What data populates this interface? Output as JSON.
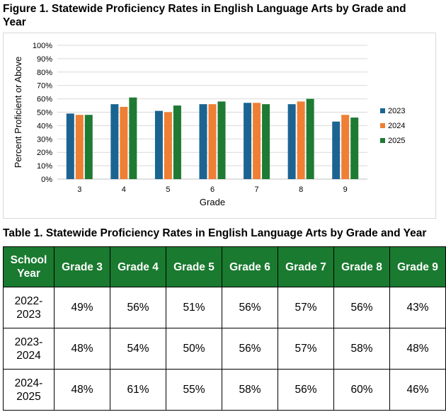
{
  "figure_title": "Figure 1. Statewide Proficiency Rates in English Language Arts by Grade and Year",
  "table_title": "Table 1. Statewide Proficiency Rates in English Language Arts by Grade and Year",
  "chart_data": {
    "type": "bar",
    "categories": [
      "3",
      "4",
      "5",
      "6",
      "7",
      "8",
      "9"
    ],
    "series": [
      {
        "name": "2023",
        "color": "#1b6491",
        "values": [
          49,
          56,
          51,
          56,
          57,
          56,
          43
        ]
      },
      {
        "name": "2024",
        "color": "#ee7f34",
        "values": [
          48,
          54,
          50,
          56,
          57,
          58,
          48
        ]
      },
      {
        "name": "2025",
        "color": "#1f7a33",
        "values": [
          48,
          61,
          55,
          58,
          56,
          60,
          46
        ]
      }
    ],
    "xlabel": "Grade",
    "ylabel": "Percent Proficient or Above",
    "ylim": [
      0,
      100
    ],
    "yticks": [
      "0%",
      "10%",
      "20%",
      "30%",
      "40%",
      "50%",
      "60%",
      "70%",
      "80%",
      "90%",
      "100%"
    ],
    "grid": true,
    "legend": "right"
  },
  "table": {
    "headers": [
      "School Year",
      "Grade 3",
      "Grade 4",
      "Grade 5",
      "Grade 6",
      "Grade 7",
      "Grade 8",
      "Grade 9"
    ],
    "rows": [
      [
        "2022-2023",
        "49%",
        "56%",
        "51%",
        "56%",
        "57%",
        "56%",
        "43%"
      ],
      [
        "2023-2024",
        "48%",
        "54%",
        "50%",
        "56%",
        "57%",
        "58%",
        "48%"
      ],
      [
        "2024-2025",
        "48%",
        "61%",
        "55%",
        "58%",
        "56%",
        "60%",
        "46%"
      ]
    ]
  }
}
